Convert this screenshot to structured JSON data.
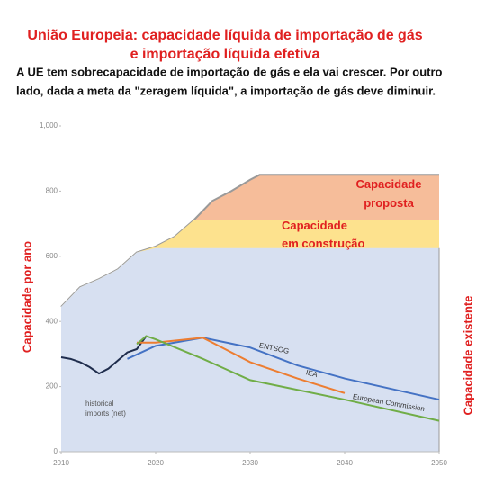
{
  "chart_data": {
    "type": "area-line",
    "title": [
      "União Europeia: capacidade líquida de importação de gás",
      "e importação líquida efetiva"
    ],
    "subtitle": [
      "A UE tem sobrecapacidade de importação de gás e ela vai crescer. Por outro",
      "lado, dada a meta da \"zeragem líquida\", a importação de gás deve diminuir."
    ],
    "y_label": "Capacidade por ano",
    "xlim": [
      2010,
      2050
    ],
    "xticks": [
      2010,
      2020,
      2030,
      2040,
      2050
    ],
    "ylim": [
      0,
      1000
    ],
    "yticks": [
      0,
      200,
      400,
      600,
      800,
      {
        "value": 1000,
        "label": "1,000"
      }
    ],
    "series": [
      {
        "name": "Capacidade proposta",
        "kind": "area",
        "color": "#f6bd9a",
        "line_color": "#9a9a9a",
        "x": [
          2010,
          2012,
          2014,
          2016,
          2018,
          2020,
          2022,
          2024,
          2026,
          2028,
          2030,
          2031,
          2040,
          2050
        ],
        "values": [
          445,
          505,
          530,
          560,
          612,
          630,
          660,
          710,
          770,
          800,
          835,
          850,
          850,
          850
        ]
      },
      {
        "name": "Capacidade em construção",
        "kind": "area",
        "color": "#fde28e",
        "x": [
          2010,
          2012,
          2014,
          2016,
          2018,
          2020,
          2022,
          2024,
          2026,
          2028,
          2030,
          2031,
          2040,
          2050
        ],
        "values": [
          445,
          505,
          530,
          560,
          612,
          630,
          660,
          710,
          710,
          710,
          710,
          710,
          710,
          710
        ]
      },
      {
        "name": "Capacidade existente",
        "kind": "area",
        "color": "#d7e0f1",
        "x": [
          2010,
          2012,
          2014,
          2016,
          2018,
          2020,
          2022,
          2024,
          2026,
          2028,
          2030,
          2031,
          2040,
          2050
        ],
        "values": [
          445,
          505,
          530,
          560,
          612,
          625,
          625,
          625,
          625,
          625,
          625,
          625,
          625,
          625
        ]
      },
      {
        "name": "historical imports (net)",
        "kind": "line",
        "color": "#1f2d4d",
        "x": [
          2010,
          2011,
          2012,
          2013,
          2014,
          2015,
          2016,
          2017,
          2018,
          2019
        ],
        "values": [
          290,
          285,
          275,
          260,
          240,
          255,
          280,
          305,
          315,
          355
        ]
      },
      {
        "name": "ENTSOG",
        "kind": "line",
        "color": "#4472c4",
        "x": [
          2017,
          2020,
          2025,
          2030,
          2035,
          2040,
          2050
        ],
        "values": [
          285,
          325,
          350,
          320,
          265,
          225,
          160
        ]
      },
      {
        "name": "IEA",
        "kind": "line",
        "color": "#ed7d31",
        "x": [
          2018,
          2020,
          2025,
          2030,
          2035,
          2040
        ],
        "values": [
          335,
          335,
          350,
          275,
          225,
          180
        ]
      },
      {
        "name": "European Commission",
        "kind": "line",
        "color": "#70ad47",
        "x": [
          2018,
          2019,
          2020,
          2025,
          2030,
          2040,
          2050
        ],
        "values": [
          330,
          355,
          345,
          285,
          220,
          160,
          95
        ]
      }
    ]
  }
}
